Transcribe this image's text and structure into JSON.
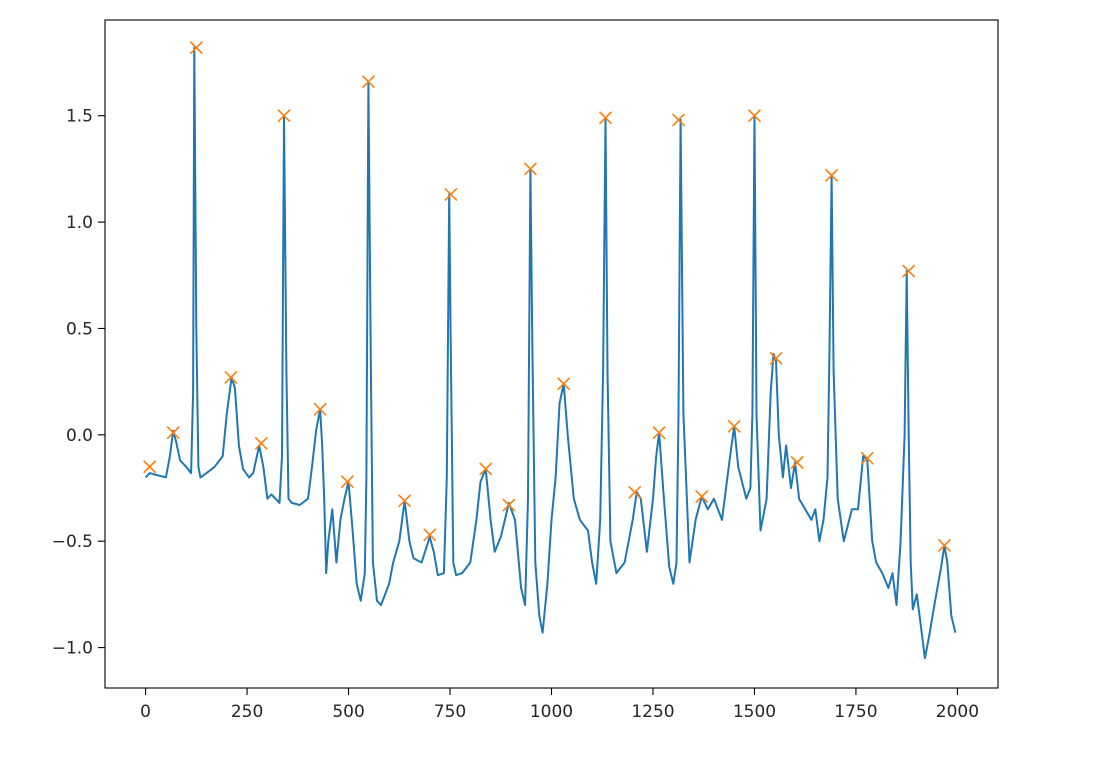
{
  "chart_data": {
    "type": "line",
    "title": "",
    "xlabel": "",
    "ylabel": "",
    "xlim": [
      -100,
      2100
    ],
    "ylim": [
      -1.19,
      1.95
    ],
    "xticks": [
      {
        "value": 0,
        "label": "0"
      },
      {
        "value": 250,
        "label": "250"
      },
      {
        "value": 500,
        "label": "500"
      },
      {
        "value": 750,
        "label": "750"
      },
      {
        "value": 1000,
        "label": "1000"
      },
      {
        "value": 1250,
        "label": "1250"
      },
      {
        "value": 1500,
        "label": "1500"
      },
      {
        "value": 1750,
        "label": "1750"
      },
      {
        "value": 2000,
        "label": "2000"
      }
    ],
    "yticks": [
      {
        "value": -1.0,
        "label": "−1.0"
      },
      {
        "value": -0.5,
        "label": "−0.5"
      },
      {
        "value": 0.0,
        "label": "0.0"
      },
      {
        "value": 0.5,
        "label": "0.5"
      },
      {
        "value": 1.0,
        "label": "1.0"
      },
      {
        "value": 1.5,
        "label": "1.5"
      }
    ],
    "grid": false,
    "colors": {
      "signal": "#1f77b4",
      "peaks": "#ff7f0e",
      "axes": "#000000"
    },
    "series": [
      {
        "kind": "line",
        "x": [
          0,
          10,
          30,
          50,
          60,
          68,
          75,
          85,
          100,
          112,
          117,
          120,
          125,
          130,
          135,
          150,
          170,
          190,
          200,
          212,
          220,
          230,
          240,
          255,
          265,
          280,
          290,
          300,
          310,
          320,
          330,
          336,
          341,
          347,
          352,
          360,
          380,
          400,
          410,
          420,
          430,
          435,
          440,
          445,
          450,
          460,
          470,
          480,
          490,
          500,
          510,
          520,
          530,
          540,
          544,
          549,
          555,
          560,
          570,
          580,
          590,
          600,
          610,
          625,
          638,
          650,
          660,
          680,
          700,
          710,
          720,
          735,
          742,
          748,
          752,
          758,
          765,
          780,
          800,
          815,
          825,
          838,
          850,
          860,
          875,
          895,
          910,
          925,
          935,
          942,
          948,
          953,
          960,
          970,
          978,
          990,
          1000,
          1010,
          1020,
          1030,
          1040,
          1055,
          1070,
          1090,
          1100,
          1110,
          1120,
          1127,
          1133,
          1138,
          1145,
          1160,
          1180,
          1200,
          1210,
          1220,
          1235,
          1250,
          1258,
          1265,
          1275,
          1290,
          1300,
          1308,
          1313,
          1318,
          1325,
          1340,
          1355,
          1370,
          1385,
          1400,
          1420,
          1440,
          1450,
          1460,
          1480,
          1490,
          1495,
          1500,
          1505,
          1515,
          1530,
          1540,
          1547,
          1553,
          1560,
          1570,
          1578,
          1590,
          1600,
          1610,
          1625,
          1640,
          1650,
          1660,
          1670,
          1680,
          1685,
          1690,
          1695,
          1705,
          1720,
          1740,
          1755,
          1768,
          1778,
          1790,
          1800,
          1815,
          1830,
          1840,
          1850,
          1860,
          1870,
          1875,
          1880,
          1885,
          1890,
          1900,
          1910,
          1920,
          1930,
          1945,
          1960,
          1968,
          1975,
          1985,
          1995
        ],
        "y": [
          -0.2,
          -0.18,
          -0.19,
          -0.2,
          -0.1,
          0.02,
          -0.03,
          -0.12,
          -0.15,
          -0.18,
          0.2,
          1.82,
          0.5,
          -0.15,
          -0.2,
          -0.18,
          -0.15,
          -0.1,
          0.1,
          0.27,
          0.22,
          -0.05,
          -0.16,
          -0.2,
          -0.18,
          -0.05,
          -0.15,
          -0.3,
          -0.28,
          -0.3,
          -0.32,
          -0.1,
          1.5,
          0.3,
          -0.3,
          -0.32,
          -0.33,
          -0.3,
          -0.15,
          0.02,
          0.12,
          -0.05,
          -0.3,
          -0.65,
          -0.5,
          -0.35,
          -0.6,
          -0.4,
          -0.3,
          -0.22,
          -0.45,
          -0.7,
          -0.78,
          -0.65,
          -0.2,
          1.66,
          0.3,
          -0.6,
          -0.78,
          -0.8,
          -0.75,
          -0.7,
          -0.6,
          -0.5,
          -0.31,
          -0.5,
          -0.58,
          -0.6,
          -0.48,
          -0.55,
          -0.66,
          -0.65,
          -0.2,
          1.13,
          0.4,
          -0.6,
          -0.66,
          -0.65,
          -0.6,
          -0.4,
          -0.22,
          -0.16,
          -0.4,
          -0.55,
          -0.48,
          -0.32,
          -0.4,
          -0.72,
          -0.8,
          -0.3,
          1.25,
          0.4,
          -0.6,
          -0.85,
          -0.93,
          -0.7,
          -0.4,
          -0.2,
          0.15,
          0.24,
          0.0,
          -0.3,
          -0.4,
          -0.45,
          -0.6,
          -0.7,
          -0.4,
          0.3,
          1.49,
          0.3,
          -0.5,
          -0.65,
          -0.6,
          -0.4,
          -0.27,
          -0.3,
          -0.55,
          -0.3,
          -0.1,
          0.01,
          -0.25,
          -0.62,
          -0.7,
          -0.6,
          0.1,
          1.48,
          0.1,
          -0.6,
          -0.4,
          -0.29,
          -0.35,
          -0.3,
          -0.4,
          -0.1,
          0.04,
          -0.15,
          -0.3,
          -0.25,
          0.1,
          1.5,
          0.1,
          -0.45,
          -0.3,
          0.2,
          0.38,
          0.35,
          0.0,
          -0.2,
          -0.05,
          -0.25,
          -0.13,
          -0.3,
          -0.35,
          -0.4,
          -0.35,
          -0.5,
          -0.4,
          -0.2,
          0.4,
          1.22,
          0.3,
          -0.3,
          -0.5,
          -0.35,
          -0.35,
          -0.1,
          -0.12,
          -0.5,
          -0.6,
          -0.65,
          -0.72,
          -0.65,
          -0.8,
          -0.5,
          0.0,
          0.77,
          0.0,
          -0.6,
          -0.82,
          -0.75,
          -0.9,
          -1.05,
          -0.95,
          -0.78,
          -0.62,
          -0.52,
          -0.6,
          -0.85,
          -0.93
        ]
      },
      {
        "kind": "markers",
        "marker": "x",
        "x": [
          10,
          68,
          125,
          210,
          285,
          341,
          430,
          497,
          549,
          638,
          700,
          752,
          838,
          895,
          948,
          1030,
          1133,
          1205,
          1265,
          1313,
          1370,
          1450,
          1500,
          1553,
          1605,
          1690,
          1778,
          1880,
          1968
        ],
        "y": [
          -0.15,
          0.01,
          1.82,
          0.27,
          -0.04,
          1.5,
          0.12,
          -0.22,
          1.66,
          -0.31,
          -0.47,
          1.13,
          -0.16,
          -0.33,
          1.25,
          0.24,
          1.49,
          -0.27,
          0.01,
          1.48,
          -0.29,
          0.04,
          1.5,
          0.36,
          -0.13,
          1.22,
          -0.11,
          0.77,
          -0.52
        ]
      }
    ]
  }
}
